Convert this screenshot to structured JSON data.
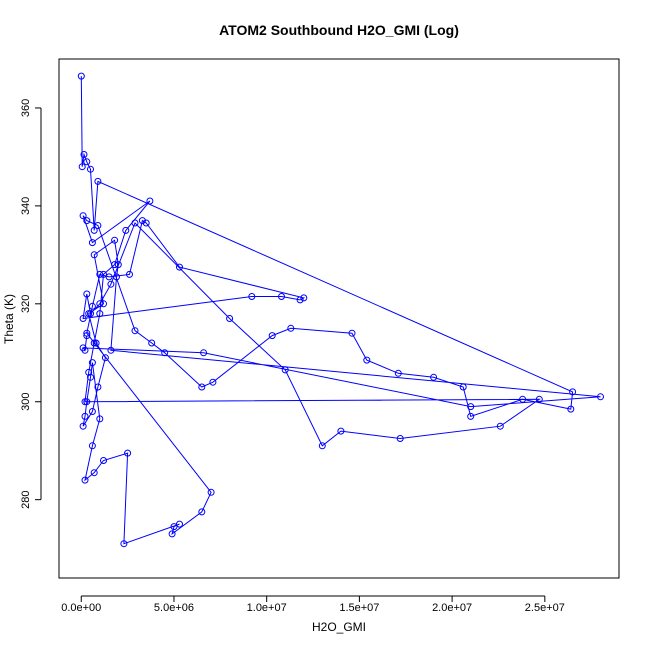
{
  "chart_data": {
    "type": "scatter",
    "title": "ATOM2 Southbound H2O_GMI (Log)",
    "xlabel": "H2O_GMI",
    "ylabel": "Theta (K)",
    "xlim": [
      -1200000,
      29000000
    ],
    "ylim": [
      264,
      370
    ],
    "x_ticks": [
      0,
      5000000,
      10000000,
      15000000,
      20000000,
      25000000
    ],
    "x_tick_labels": [
      "0.0e+00",
      "5.0e+06",
      "1.0e+07",
      "1.5e+07",
      "2.0e+07",
      "2.5e+07"
    ],
    "y_ticks": [
      280,
      300,
      320,
      340,
      360
    ],
    "y_tick_labels": [
      "280",
      "300",
      "320",
      "340",
      "360"
    ],
    "color": "#0000ff",
    "grid": false,
    "marker": "open-circle",
    "x": [
      0,
      50000,
      150000,
      300000,
      500000,
      700000,
      900000,
      26500000,
      26400000,
      23800000,
      21000000,
      20600000,
      19000000,
      17100000,
      15400000,
      14600000,
      11300000,
      10300000,
      7100000,
      6500000,
      4500000,
      3800000,
      2900000,
      900000,
      300000,
      100000,
      600000,
      3700000,
      2400000,
      1800000,
      1200000,
      1000000,
      700000,
      400000,
      200000,
      24700000,
      22600000,
      17200000,
      14000000,
      13000000,
      11000000,
      8000000,
      2900000,
      1600000,
      1000000,
      500000,
      300000,
      100000,
      9200000,
      10800000,
      11800000,
      12000000,
      5300000,
      3500000,
      3300000,
      2600000,
      1500000,
      1000000,
      600000,
      300000,
      7000000,
      6500000,
      4900000,
      5000000,
      5300000,
      2300000,
      2500000,
      1200000,
      700000,
      200000,
      600000,
      1000000,
      600000,
      500000,
      300000,
      200000,
      100000,
      600000,
      900000,
      1300000,
      800000,
      400000,
      1200000,
      700000,
      1800000,
      2000000,
      1900000,
      1600000,
      28000000,
      21000000,
      6600000,
      100000,
      200000,
      300000
    ],
    "y": [
      366.5,
      348.0,
      350.5,
      349.0,
      347.5,
      335.0,
      345.0,
      302.0,
      298.5,
      300.5,
      297.0,
      303.0,
      305.0,
      305.8,
      308.5,
      314.0,
      315.0,
      313.5,
      304.0,
      303.0,
      310.0,
      312.0,
      314.5,
      336.0,
      337.0,
      338.0,
      332.5,
      341.0,
      335.0,
      328.0,
      326.0,
      318.0,
      312.0,
      306.0,
      300.0,
      300.5,
      295.0,
      292.5,
      294.0,
      291.0,
      306.5,
      317.0,
      336.5,
      324.0,
      320.0,
      318.0,
      322.0,
      317.0,
      321.5,
      321.5,
      320.8,
      321.2,
      327.5,
      336.5,
      337.0,
      326.0,
      325.5,
      326.0,
      319.5,
      314.0,
      281.5,
      277.5,
      273.0,
      274.5,
      275.0,
      271.0,
      289.5,
      288.0,
      285.5,
      284.0,
      291.0,
      296.5,
      308.0,
      305.0,
      300.0,
      297.0,
      295.0,
      298.0,
      303.0,
      309.0,
      312.0,
      318.0,
      320.0,
      330.0,
      333.0,
      328.0,
      325.5,
      310.5,
      301.0,
      299.0,
      310.0,
      311.0,
      310.5,
      313.5
    ]
  }
}
